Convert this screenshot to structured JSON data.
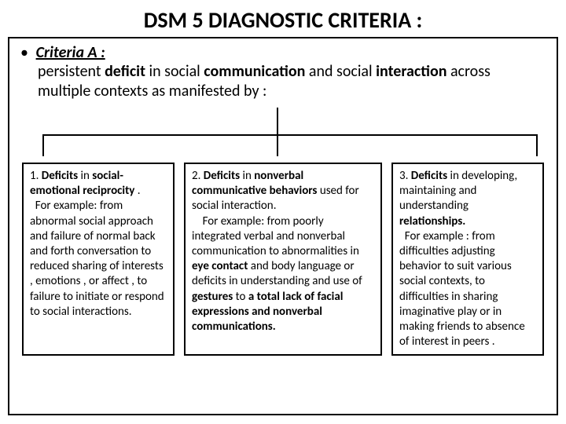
{
  "title": "DSM 5 DIAGNOSTIC CRITERIA :",
  "criteria": {
    "bullet": "•",
    "label": "Criteria  A :",
    "desc_html": "persistent <b>deficit</b> in social <b>communication</b> and social <b>interaction</b> across multiple contexts as manifested by :"
  },
  "boxes": [
    {
      "html": "1. <b>Deficits</b> in <b>social-emotional reciprocity</b> .<br>&nbsp;&nbsp;For example: from abnormal social approach and failure of normal back and forth conversation to reduced sharing of interests , emotions , or affect , to failure to initiate or respond to social interactions."
    },
    {
      "html": "2. <b>Deficits</b> in <b>nonverbal communicative behaviors</b> used for social interaction.<br>&nbsp;&nbsp;&nbsp;&nbsp;For example: from poorly integrated verbal and nonverbal communication to abnormalities in <b>eye contact</b> and body language or deficits in understanding and use of <b>gestures</b> to <b>a total lack of facial expressions and nonverbal communications.</b>"
    },
    {
      "html": "3. <b>Deficits</b> in developing, maintaining and understanding <b>relationships.</b><br>&nbsp;&nbsp;For example : from difficulties adjusting behavior to suit various social contexts, to difficulties in sharing imaginative play or in making friends to absence of interest in peers ."
    }
  ]
}
